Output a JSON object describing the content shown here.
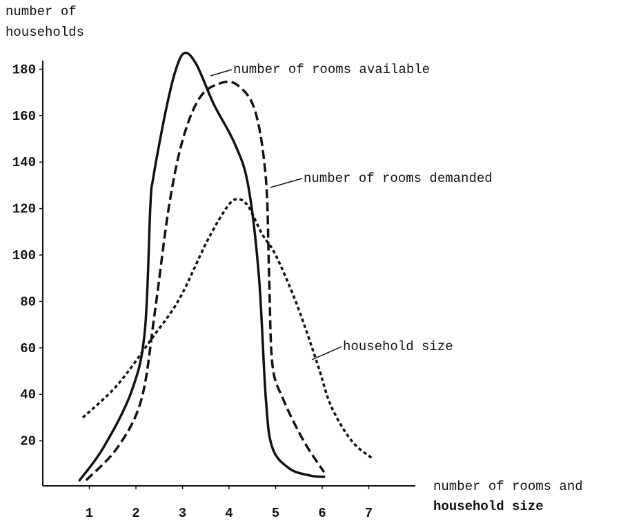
{
  "chart_data": {
    "type": "line",
    "ylabel": [
      "number of",
      "households"
    ],
    "xlabel": [
      "number of rooms and",
      "household size"
    ],
    "xlim": [
      0,
      8
    ],
    "ylim": [
      0,
      185
    ],
    "xticks": [
      1,
      2,
      3,
      4,
      5,
      6,
      7
    ],
    "yticks": [
      20,
      40,
      60,
      80,
      100,
      120,
      140,
      160,
      180
    ],
    "series": [
      {
        "name": "number of rooms available",
        "color": "#111111",
        "dash": "solid",
        "x": [
          0.79,
          1.3,
          1.9,
          2.19,
          2.31,
          2.37,
          2.64,
          2.86,
          3.05,
          3.3,
          3.67,
          4.12,
          4.41,
          4.64,
          4.79,
          4.93,
          5.3,
          5.75,
          6.04
        ],
        "values": [
          3,
          17,
          41,
          67,
          121,
          133,
          162,
          180,
          187,
          182,
          165,
          148,
          130,
          91,
          38,
          17,
          8,
          5,
          4.5
        ]
      },
      {
        "name": "number of rooms demanded",
        "color": "#111111",
        "dash": "dashed",
        "x": [
          0.93,
          1.6,
          2.12,
          2.41,
          2.71,
          3.01,
          3.38,
          3.82,
          4.19,
          4.56,
          4.79,
          4.86,
          4.93,
          5.16,
          5.6,
          6.04
        ],
        "values": [
          3,
          17,
          38,
          76,
          121,
          150,
          168,
          174,
          173,
          162,
          133,
          91,
          53,
          38,
          20,
          6.5
        ]
      },
      {
        "name": "household size",
        "color": "#111111",
        "dash": "dotted",
        "x": [
          0.86,
          1.6,
          2.34,
          2.93,
          3.53,
          3.97,
          4.19,
          4.41,
          4.71,
          5.0,
          5.45,
          5.9,
          6.19,
          6.63,
          7.07
        ],
        "values": [
          30,
          44,
          64,
          81,
          106,
          121,
          124,
          121,
          109,
          100,
          79,
          53,
          35,
          20,
          12.5
        ]
      }
    ]
  }
}
